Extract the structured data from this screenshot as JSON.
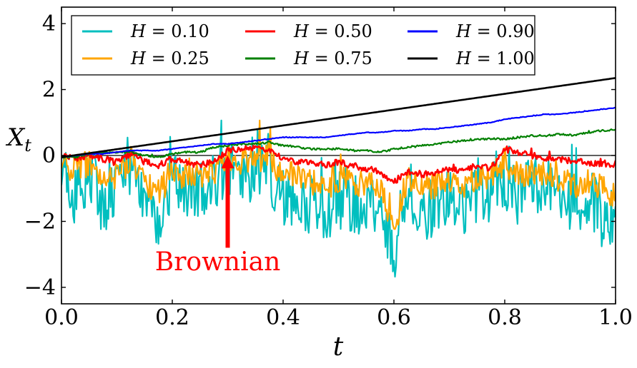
{
  "chart_data": {
    "type": "line",
    "title": "",
    "xlabel": "t",
    "ylabel_main": "X",
    "ylabel_sub": "t",
    "xlim": [
      0.0,
      1.0
    ],
    "ylim": [
      -4.5,
      4.5
    ],
    "x_ticks": [
      0.0,
      0.2,
      0.4,
      0.6,
      0.8,
      1.0
    ],
    "x_tick_labels": [
      "0.0",
      "0.2",
      "0.4",
      "0.6",
      "0.8",
      "1.0"
    ],
    "y_ticks": [
      -4,
      -2,
      0,
      2,
      4
    ],
    "y_tick_labels": [
      "−4",
      "−2",
      "0",
      "2",
      "4"
    ],
    "grid": false,
    "legend_position": "top",
    "reference_line_y": 0,
    "annotation": {
      "text": "Brownian",
      "arrow_from": [
        0.3,
        -2.8
      ],
      "arrow_to": [
        0.3,
        0.0
      ],
      "color": "#ff0000"
    },
    "x": [
      0.0,
      0.025,
      0.05,
      0.075,
      0.1,
      0.125,
      0.15,
      0.175,
      0.2,
      0.225,
      0.25,
      0.275,
      0.3,
      0.325,
      0.35,
      0.375,
      0.4,
      0.425,
      0.45,
      0.475,
      0.5,
      0.525,
      0.55,
      0.575,
      0.6,
      0.625,
      0.65,
      0.675,
      0.7,
      0.725,
      0.75,
      0.775,
      0.8,
      0.825,
      0.85,
      0.875,
      0.9,
      0.925,
      0.95,
      0.975,
      1.0
    ],
    "series": [
      {
        "name": "H = 0.10",
        "legend_var": "H",
        "legend_value": "= 0.10",
        "color": "#00bfbf",
        "width": 2.2,
        "values": [
          -0.2,
          -1.3,
          -0.4,
          -1.6,
          -1.0,
          -0.2,
          -1.5,
          -2.3,
          -0.6,
          -1.4,
          -1.0,
          -0.8,
          -0.3,
          -0.6,
          -0.2,
          -0.4,
          -1.2,
          -1.3,
          -1.5,
          -1.7,
          -1.0,
          -1.6,
          -1.4,
          -1.6,
          -3.0,
          -0.8,
          -1.7,
          -1.5,
          -1.2,
          -1.6,
          -1.4,
          -1.1,
          -0.5,
          -1.2,
          -1.0,
          -0.8,
          -1.3,
          -1.5,
          -1.3,
          -1.8,
          -1.9
        ],
        "spread": [
          0.7,
          1.0,
          1.0,
          0.9,
          0.9,
          1.0,
          0.8,
          0.8,
          0.9,
          0.9,
          0.9,
          0.9,
          0.9,
          1.0,
          1.2,
          1.2,
          1.0,
          0.8,
          0.9,
          1.0,
          1.2,
          1.0,
          0.8,
          0.8,
          0.9,
          1.0,
          1.0,
          0.9,
          0.8,
          0.9,
          1.0,
          1.0,
          1.2,
          1.0,
          0.9,
          0.9,
          0.8,
          0.9,
          0.9,
          1.0,
          1.0
        ]
      },
      {
        "name": "H = 0.25",
        "legend_var": "H",
        "legend_value": "= 0.25",
        "color": "#ffa500",
        "width": 2.2,
        "values": [
          -0.1,
          -0.5,
          -0.3,
          -0.9,
          -0.6,
          -0.2,
          -0.8,
          -1.1,
          -0.4,
          -0.7,
          -0.6,
          -0.5,
          -0.1,
          -0.2,
          0.0,
          0.0,
          -0.6,
          -0.5,
          -0.8,
          -1.0,
          -0.6,
          -0.9,
          -0.8,
          -0.9,
          -2.2,
          -0.6,
          -1.0,
          -0.9,
          -0.7,
          -0.9,
          -0.7,
          -0.6,
          -0.2,
          -0.6,
          -0.5,
          -0.6,
          -0.7,
          -0.9,
          -0.8,
          -1.0,
          -1.2
        ],
        "spread": [
          0.3,
          0.5,
          0.5,
          0.4,
          0.4,
          0.5,
          0.4,
          0.4,
          0.4,
          0.4,
          0.4,
          0.4,
          0.4,
          0.4,
          0.5,
          0.5,
          0.4,
          0.4,
          0.4,
          0.4,
          0.5,
          0.4,
          0.4,
          0.4,
          0.4,
          0.4,
          0.4,
          0.4,
          0.4,
          0.4,
          0.4,
          0.4,
          0.5,
          0.4,
          0.4,
          0.4,
          0.4,
          0.4,
          0.4,
          0.4,
          0.4
        ]
      },
      {
        "name": "H = 0.50",
        "legend_var": "H",
        "legend_value": "= 0.50",
        "color": "#ff0000",
        "width": 2.6,
        "values": [
          0.0,
          -0.1,
          0.0,
          -0.1,
          -0.2,
          0.05,
          -0.2,
          -0.3,
          -0.1,
          -0.2,
          -0.3,
          -0.2,
          0.15,
          0.2,
          0.2,
          0.2,
          -0.1,
          -0.2,
          -0.2,
          -0.3,
          -0.2,
          -0.3,
          -0.4,
          -0.5,
          -0.8,
          -0.5,
          -0.6,
          -0.5,
          -0.4,
          -0.5,
          -0.3,
          -0.4,
          0.2,
          0.1,
          0.0,
          -0.1,
          -0.1,
          -0.2,
          -0.2,
          -0.3,
          -0.25
        ],
        "spread": [
          0.08,
          0.1,
          0.1,
          0.1,
          0.1,
          0.1,
          0.1,
          0.1,
          0.1,
          0.1,
          0.1,
          0.1,
          0.1,
          0.1,
          0.1,
          0.1,
          0.1,
          0.1,
          0.1,
          0.1,
          0.1,
          0.1,
          0.1,
          0.1,
          0.1,
          0.1,
          0.1,
          0.1,
          0.1,
          0.1,
          0.1,
          0.1,
          0.1,
          0.1,
          0.1,
          0.1,
          0.1,
          0.1,
          0.1,
          0.1,
          0.1
        ]
      },
      {
        "name": "H = 0.75",
        "legend_var": "H",
        "legend_value": "= 0.75",
        "color": "#008000",
        "width": 2.2,
        "values": [
          -0.05,
          -0.05,
          0.05,
          0.1,
          0.1,
          0.1,
          0.0,
          -0.05,
          0.05,
          0.1,
          0.1,
          0.25,
          0.3,
          0.35,
          0.35,
          0.4,
          0.3,
          0.25,
          0.2,
          0.2,
          0.2,
          0.15,
          0.15,
          0.1,
          0.2,
          0.25,
          0.3,
          0.35,
          0.4,
          0.45,
          0.5,
          0.5,
          0.5,
          0.55,
          0.6,
          0.6,
          0.65,
          0.6,
          0.7,
          0.75,
          0.8
        ],
        "spread": [
          0.02,
          0.03,
          0.03,
          0.03,
          0.03,
          0.03,
          0.03,
          0.03,
          0.03,
          0.03,
          0.03,
          0.03,
          0.03,
          0.03,
          0.03,
          0.03,
          0.03,
          0.03,
          0.03,
          0.03,
          0.03,
          0.03,
          0.03,
          0.03,
          0.03,
          0.03,
          0.03,
          0.03,
          0.03,
          0.03,
          0.03,
          0.03,
          0.03,
          0.03,
          0.03,
          0.03,
          0.03,
          0.03,
          0.03,
          0.03,
          0.03
        ]
      },
      {
        "name": "H = 0.90",
        "legend_var": "H",
        "legend_value": "= 0.90",
        "color": "#0000ff",
        "width": 2.2,
        "values": [
          -0.05,
          0.0,
          0.05,
          0.05,
          0.1,
          0.15,
          0.15,
          0.15,
          0.2,
          0.25,
          0.3,
          0.35,
          0.35,
          0.4,
          0.45,
          0.5,
          0.55,
          0.55,
          0.55,
          0.55,
          0.6,
          0.65,
          0.7,
          0.7,
          0.75,
          0.75,
          0.8,
          0.8,
          0.85,
          0.9,
          0.95,
          1.0,
          1.1,
          1.15,
          1.2,
          1.25,
          1.25,
          1.3,
          1.35,
          1.4,
          1.45
        ],
        "spread": [
          0.01,
          0.01,
          0.01,
          0.01,
          0.01,
          0.01,
          0.01,
          0.01,
          0.01,
          0.01,
          0.01,
          0.01,
          0.01,
          0.01,
          0.01,
          0.01,
          0.01,
          0.01,
          0.01,
          0.01,
          0.01,
          0.01,
          0.01,
          0.01,
          0.01,
          0.01,
          0.01,
          0.01,
          0.01,
          0.01,
          0.01,
          0.01,
          0.01,
          0.01,
          0.01,
          0.01,
          0.01,
          0.01,
          0.01,
          0.01,
          0.01
        ]
      },
      {
        "name": "H = 1.00",
        "legend_var": "H",
        "legend_value": "= 1.00",
        "color": "#000000",
        "width": 2.6,
        "values": [
          -0.05,
          0.01,
          0.07,
          0.13,
          0.19,
          0.25,
          0.31,
          0.37,
          0.43,
          0.49,
          0.55,
          0.61,
          0.67,
          0.73,
          0.79,
          0.85,
          0.91,
          0.97,
          1.03,
          1.09,
          1.15,
          1.21,
          1.27,
          1.33,
          1.39,
          1.45,
          1.51,
          1.57,
          1.63,
          1.69,
          1.75,
          1.81,
          1.87,
          1.93,
          1.99,
          2.05,
          2.11,
          2.17,
          2.23,
          2.29,
          2.35
        ],
        "spread": [
          0,
          0,
          0,
          0,
          0,
          0,
          0,
          0,
          0,
          0,
          0,
          0,
          0,
          0,
          0,
          0,
          0,
          0,
          0,
          0,
          0,
          0,
          0,
          0,
          0,
          0,
          0,
          0,
          0,
          0,
          0,
          0,
          0,
          0,
          0,
          0,
          0,
          0,
          0,
          0,
          0
        ]
      }
    ]
  }
}
